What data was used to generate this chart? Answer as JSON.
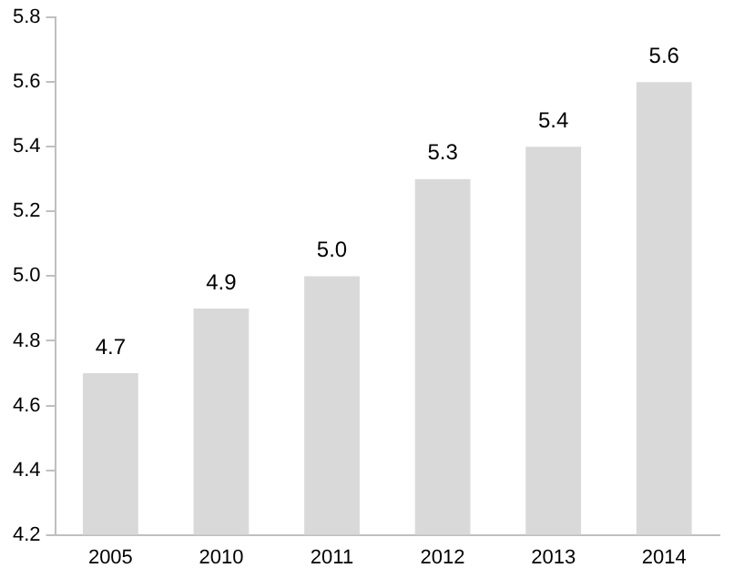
{
  "chart_data": {
    "type": "bar",
    "categories": [
      "2005",
      "2010",
      "2011",
      "2012",
      "2013",
      "2014"
    ],
    "values": [
      4.7,
      4.9,
      5.0,
      5.3,
      5.4,
      5.6
    ],
    "value_labels": [
      "4.7",
      "4.9",
      "5.0",
      "5.3",
      "5.4",
      "5.6"
    ],
    "color": "#d9d9d9",
    "ylim": [
      4.2,
      5.8
    ],
    "yticks": [
      4.2,
      4.4,
      4.6,
      4.8,
      {
        "value": 5,
        "label": "5.0"
      },
      5.2,
      5.4,
      5.6,
      5.8
    ],
    "grid": false,
    "legend": false
  }
}
